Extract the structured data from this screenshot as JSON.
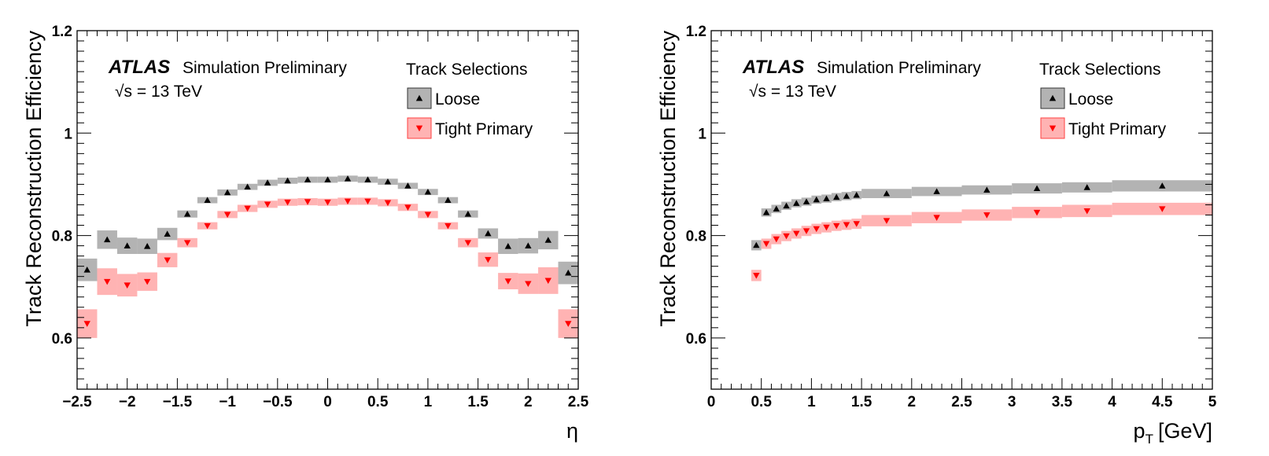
{
  "chart_data": [
    {
      "type": "scatter",
      "xlabel": "η",
      "ylabel": "Track Reconstruction Efficiency",
      "xlim": [
        -2.5,
        2.5
      ],
      "ylim": [
        0.5,
        1.2
      ],
      "xticks": [
        {
          "value": -2.5,
          "label": "−2.5"
        },
        {
          "value": -2,
          "label": "−2"
        },
        {
          "value": -1.5,
          "label": "−1.5"
        },
        {
          "value": -1,
          "label": "−1"
        },
        {
          "value": -0.5,
          "label": "−0.5"
        },
        {
          "value": 0,
          "label": "0"
        },
        {
          "value": 0.5,
          "label": "0.5"
        },
        {
          "value": 1,
          "label": "1"
        },
        {
          "value": 1.5,
          "label": "1.5"
        },
        {
          "value": 2,
          "label": "2"
        },
        {
          "value": 2.5,
          "label": "2.5"
        }
      ],
      "yticks": [
        {
          "value": 0.6,
          "label": "0.6"
        },
        {
          "value": 0.8,
          "label": "0.8"
        },
        {
          "value": 1.0,
          "label": "1"
        },
        {
          "value": 1.2,
          "label": "1.2"
        }
      ],
      "atlas_label": "ATLAS",
      "atlas_sub": "Simulation Preliminary",
      "energy_label": "√s = 13 TeV",
      "legend_title": "Track Selections",
      "legend_position": "top-right",
      "series": [
        {
          "name": "Loose",
          "marker": "triangle-up",
          "marker_color": "#000000",
          "band_color": "#b3b3b3",
          "bin_width": 0.2,
          "x": [
            -2.4,
            -2.2,
            -2.0,
            -1.8,
            -1.6,
            -1.4,
            -1.2,
            -1.0,
            -0.8,
            -0.6,
            -0.4,
            -0.2,
            0.0,
            0.2,
            0.4,
            0.6,
            0.8,
            1.0,
            1.2,
            1.4,
            1.6,
            1.8,
            2.0,
            2.2,
            2.4
          ],
          "y": [
            0.733,
            0.792,
            0.78,
            0.779,
            0.803,
            0.842,
            0.869,
            0.884,
            0.895,
            0.903,
            0.907,
            0.909,
            0.909,
            0.911,
            0.909,
            0.905,
            0.897,
            0.885,
            0.869,
            0.842,
            0.804,
            0.779,
            0.78,
            0.791,
            0.727
          ],
          "err": [
            0.022,
            0.018,
            0.016,
            0.015,
            0.012,
            0.007,
            0.006,
            0.006,
            0.006,
            0.006,
            0.006,
            0.006,
            0.006,
            0.006,
            0.006,
            0.006,
            0.006,
            0.006,
            0.006,
            0.007,
            0.01,
            0.015,
            0.015,
            0.018,
            0.022
          ]
        },
        {
          "name": "Tight Primary",
          "marker": "triangle-down",
          "marker_color": "#ff0000",
          "band_color": "#ffb3b3",
          "bin_width": 0.2,
          "x": [
            -2.4,
            -2.2,
            -2.0,
            -1.8,
            -1.6,
            -1.4,
            -1.2,
            -1.0,
            -0.8,
            -0.6,
            -0.4,
            -0.2,
            0.0,
            0.2,
            0.4,
            0.6,
            0.8,
            1.0,
            1.2,
            1.4,
            1.6,
            1.8,
            2.0,
            2.2,
            2.4
          ],
          "y": [
            0.628,
            0.71,
            0.703,
            0.71,
            0.752,
            0.786,
            0.819,
            0.841,
            0.853,
            0.861,
            0.865,
            0.866,
            0.865,
            0.867,
            0.867,
            0.864,
            0.855,
            0.841,
            0.819,
            0.786,
            0.753,
            0.711,
            0.706,
            0.712,
            0.628
          ],
          "err": [
            0.028,
            0.026,
            0.022,
            0.018,
            0.014,
            0.009,
            0.007,
            0.007,
            0.007,
            0.007,
            0.007,
            0.007,
            0.007,
            0.007,
            0.007,
            0.007,
            0.007,
            0.007,
            0.007,
            0.009,
            0.014,
            0.016,
            0.02,
            0.026,
            0.028
          ]
        }
      ]
    },
    {
      "type": "scatter",
      "xlabel": "p",
      "xlabel_sub": "T",
      "xlabel_unit": "[GeV]",
      "ylabel": "Track Reconstruction Efficiency",
      "xlim": [
        0,
        5
      ],
      "ylim": [
        0.5,
        1.2
      ],
      "xticks": [
        {
          "value": 0,
          "label": "0"
        },
        {
          "value": 0.5,
          "label": "0.5"
        },
        {
          "value": 1,
          "label": "1"
        },
        {
          "value": 1.5,
          "label": "1.5"
        },
        {
          "value": 2,
          "label": "2"
        },
        {
          "value": 2.5,
          "label": "2.5"
        },
        {
          "value": 3,
          "label": "3"
        },
        {
          "value": 3.5,
          "label": "3.5"
        },
        {
          "value": 4,
          "label": "4"
        },
        {
          "value": 4.5,
          "label": "4.5"
        },
        {
          "value": 5,
          "label": "5"
        }
      ],
      "yticks": [
        {
          "value": 0.6,
          "label": "0.6"
        },
        {
          "value": 0.8,
          "label": "0.8"
        },
        {
          "value": 1.0,
          "label": "1"
        },
        {
          "value": 1.2,
          "label": "1.2"
        }
      ],
      "atlas_label": "ATLAS",
      "atlas_sub": "Simulation Preliminary",
      "energy_label": "√s = 13 TeV",
      "legend_title": "Track Selections",
      "legend_position": "top-right",
      "series": [
        {
          "name": "Loose",
          "marker": "triangle-up",
          "marker_color": "#000000",
          "band_color": "#b3b3b3",
          "x_lo": [
            0.4,
            0.5,
            0.6,
            0.7,
            0.8,
            0.9,
            1.0,
            1.1,
            1.2,
            1.3,
            1.4,
            1.5,
            2.0,
            2.5,
            3.0,
            3.5,
            4.0
          ],
          "x_hi": [
            0.5,
            0.6,
            0.7,
            0.8,
            0.9,
            1.0,
            1.1,
            1.2,
            1.3,
            1.4,
            1.5,
            2.0,
            2.5,
            3.0,
            3.5,
            4.0,
            5.0
          ],
          "x": [
            0.45,
            0.55,
            0.65,
            0.75,
            0.85,
            0.95,
            1.05,
            1.15,
            1.25,
            1.35,
            1.45,
            1.75,
            2.25,
            2.75,
            3.25,
            3.75,
            4.5
          ],
          "y": [
            0.781,
            0.845,
            0.852,
            0.858,
            0.863,
            0.866,
            0.87,
            0.872,
            0.875,
            0.877,
            0.879,
            0.882,
            0.886,
            0.889,
            0.892,
            0.894,
            0.897
          ],
          "err": [
            0.01,
            0.008,
            0.008,
            0.008,
            0.008,
            0.008,
            0.008,
            0.008,
            0.008,
            0.008,
            0.008,
            0.009,
            0.009,
            0.009,
            0.01,
            0.01,
            0.011
          ]
        },
        {
          "name": "Tight Primary",
          "marker": "triangle-down",
          "marker_color": "#ff0000",
          "band_color": "#ffb3b3",
          "x_lo": [
            0.4,
            0.5,
            0.6,
            0.7,
            0.8,
            0.9,
            1.0,
            1.1,
            1.2,
            1.3,
            1.4,
            1.5,
            2.0,
            2.5,
            3.0,
            3.5,
            4.0
          ],
          "x_hi": [
            0.5,
            0.6,
            0.7,
            0.8,
            0.9,
            1.0,
            1.1,
            1.2,
            1.3,
            1.4,
            1.5,
            2.0,
            2.5,
            3.0,
            3.5,
            4.0,
            5.0
          ],
          "x": [
            0.45,
            0.55,
            0.65,
            0.75,
            0.85,
            0.95,
            1.05,
            1.15,
            1.25,
            1.35,
            1.45,
            1.75,
            2.25,
            2.75,
            3.25,
            3.75,
            4.5
          ],
          "y": [
            0.722,
            0.784,
            0.793,
            0.799,
            0.804,
            0.809,
            0.813,
            0.816,
            0.819,
            0.821,
            0.823,
            0.829,
            0.835,
            0.84,
            0.845,
            0.848,
            0.852
          ],
          "err": [
            0.011,
            0.01,
            0.01,
            0.01,
            0.01,
            0.01,
            0.01,
            0.01,
            0.01,
            0.01,
            0.01,
            0.011,
            0.011,
            0.011,
            0.011,
            0.012,
            0.012
          ]
        }
      ]
    }
  ]
}
